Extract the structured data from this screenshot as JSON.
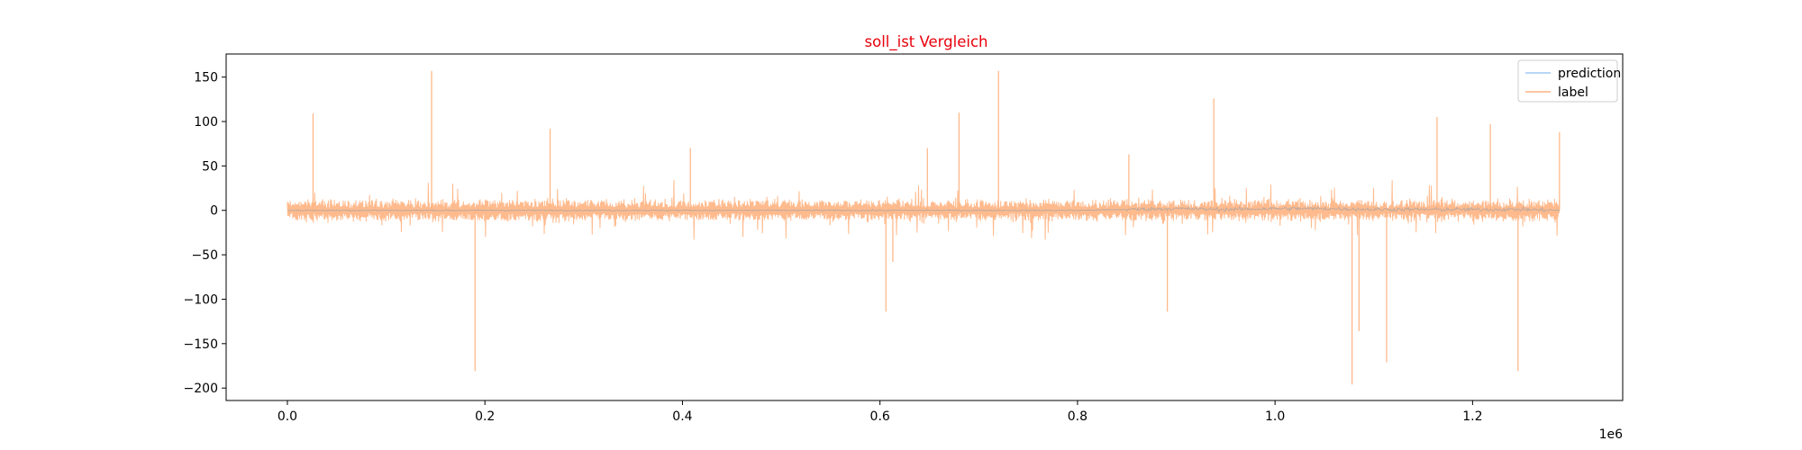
{
  "chart_data": {
    "type": "line",
    "title": "soll_ist Vergleich",
    "title_color": "#e8000b",
    "xlabel": "",
    "ylabel": "",
    "x_offset_label": "1e6",
    "xlim": [
      -62000,
      1352000
    ],
    "ylim": [
      -214,
      176
    ],
    "x_ticks": [
      0,
      0.2,
      0.4,
      0.6,
      0.8,
      1.0,
      1.2
    ],
    "x_tick_labels": [
      "0.0",
      "0.2",
      "0.4",
      "0.6",
      "0.8",
      "1.0",
      "1.2"
    ],
    "y_ticks": [
      150,
      100,
      50,
      0,
      -50,
      -100,
      -150,
      -200
    ],
    "y_tick_labels": [
      "150",
      "100",
      "50",
      "0",
      "−50",
      "−100",
      "−150",
      "−200"
    ],
    "grid": false,
    "legend_position": "top-right",
    "series": [
      {
        "name": "prediction",
        "color": "#a1c9f4",
        "x": [
          0,
          100000,
          200000,
          300000,
          400000,
          500000,
          600000,
          700000,
          800000,
          850000,
          900000,
          950000,
          1000000,
          1050000,
          1100000,
          1150000,
          1200000,
          1250000,
          1288000
        ],
        "values": [
          0,
          0,
          0,
          0,
          0,
          0,
          0,
          0,
          0,
          1,
          2,
          1,
          2,
          2,
          1,
          1,
          1,
          1,
          0
        ]
      },
      {
        "name": "label",
        "color": "#ffb482",
        "x": [
          0,
          26000,
          146000,
          190000,
          266000,
          408000,
          606000,
          613000,
          648000,
          680000,
          720000,
          852000,
          891000,
          938000,
          1078000,
          1085000,
          1113000,
          1164000,
          1218000,
          1246000,
          1288000
        ],
        "values": [
          0,
          109,
          157,
          -181,
          92,
          70,
          -114,
          -58,
          70,
          110,
          157,
          63,
          -114,
          126,
          -196,
          -136,
          -171,
          105,
          97,
          -181,
          88
        ]
      }
    ]
  }
}
